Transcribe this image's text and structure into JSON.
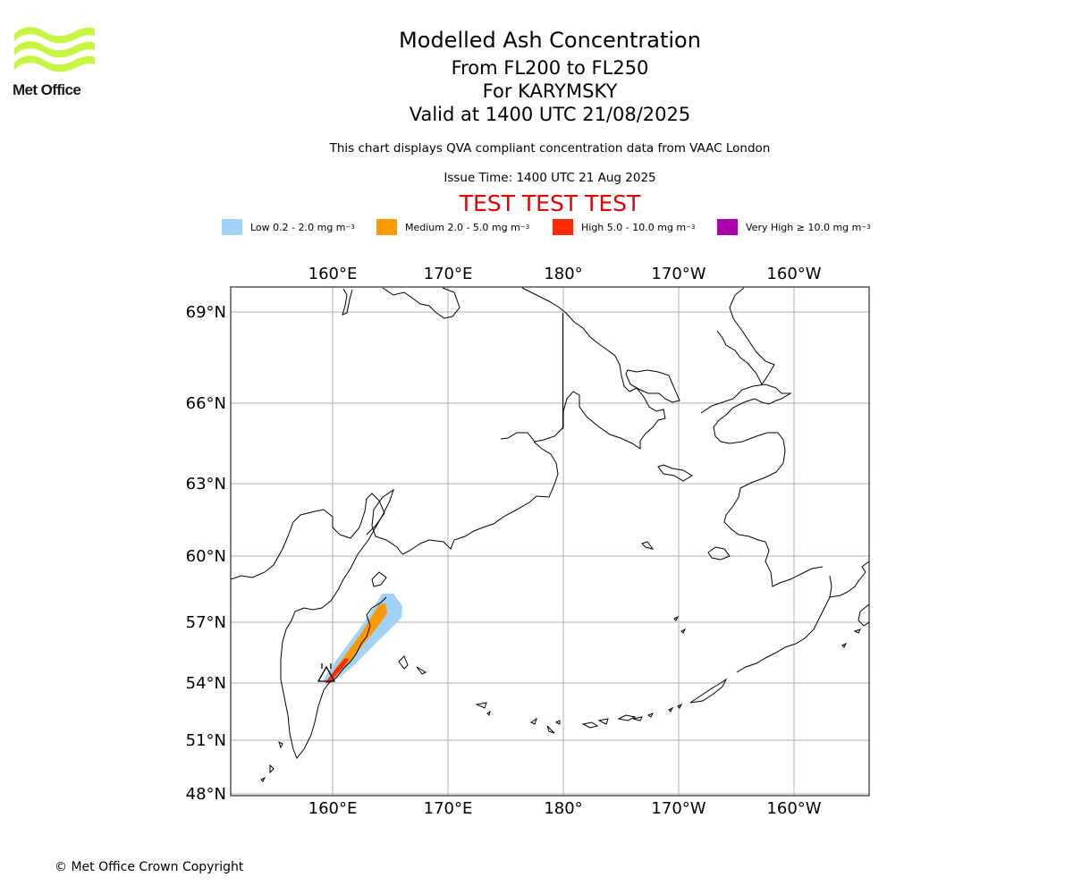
{
  "header": {
    "title": "Modelled Ash Concentration",
    "levels": "From FL200 to FL250",
    "volcano": "For KARYMSKY",
    "valid": "Valid at 1400 UTC 21/08/2025",
    "description": "This chart displays QVA compliant concentration data from VAAC London",
    "issue_time": "Issue Time: 1400 UTC 21 Aug 2025",
    "test_banner": "TEST TEST TEST"
  },
  "logo": {
    "text": "Met Office",
    "color": "#c8f542"
  },
  "legend": [
    {
      "label": "Low 0.2 - 2.0 mg m",
      "exp": "−3",
      "color": "#a0d2fa"
    },
    {
      "label": "Medium 2.0 - 5.0 mg m",
      "exp": "−3",
      "color": "#ff9900"
    },
    {
      "label": "High 5.0 - 10.0 mg m",
      "exp": "−3",
      "color": "#ff2a00"
    },
    {
      "label": "Very High ≥ 10.0 mg m",
      "exp": "−3",
      "color": "#aa00aa"
    }
  ],
  "map": {
    "lon_labels": [
      "160°E",
      "170°E",
      "180°",
      "170°W",
      "160°W"
    ],
    "lat_labels": [
      "69°N",
      "66°N",
      "63°N",
      "60°N",
      "57°N",
      "54°N",
      "51°N",
      "48°N"
    ]
  },
  "footer": {
    "copyright": "© Met Office Crown Copyright"
  }
}
